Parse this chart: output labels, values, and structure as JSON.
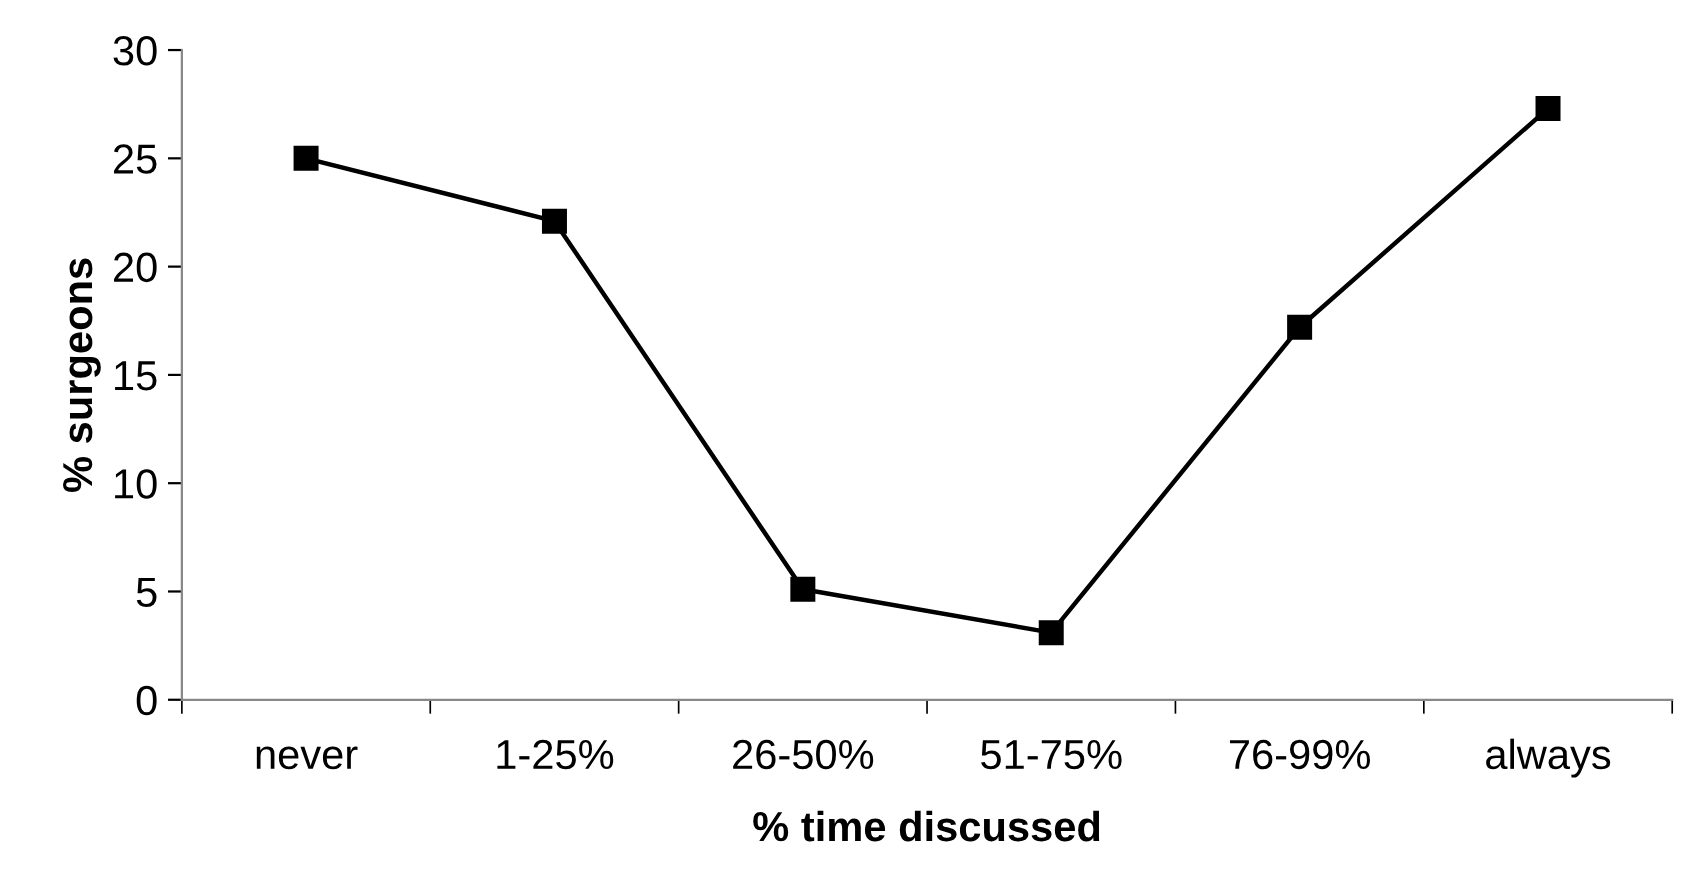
{
  "chart_data": {
    "type": "line",
    "xlabel": "% time discussed",
    "ylabel": "% surgeons",
    "categories": [
      "never",
      "1-25%",
      "26-50%",
      "51-75%",
      "76-99%",
      "always"
    ],
    "series": [
      {
        "color": "#000000",
        "values": [
          25,
          22.1,
          5.1,
          3.1,
          17.2,
          27.3
        ]
      }
    ],
    "ylim": [
      0,
      30
    ],
    "yticks": [
      0,
      5,
      10,
      15,
      20,
      25,
      30
    ],
    "grid": false,
    "legend": false,
    "marker": "square",
    "line_style": "solid"
  }
}
